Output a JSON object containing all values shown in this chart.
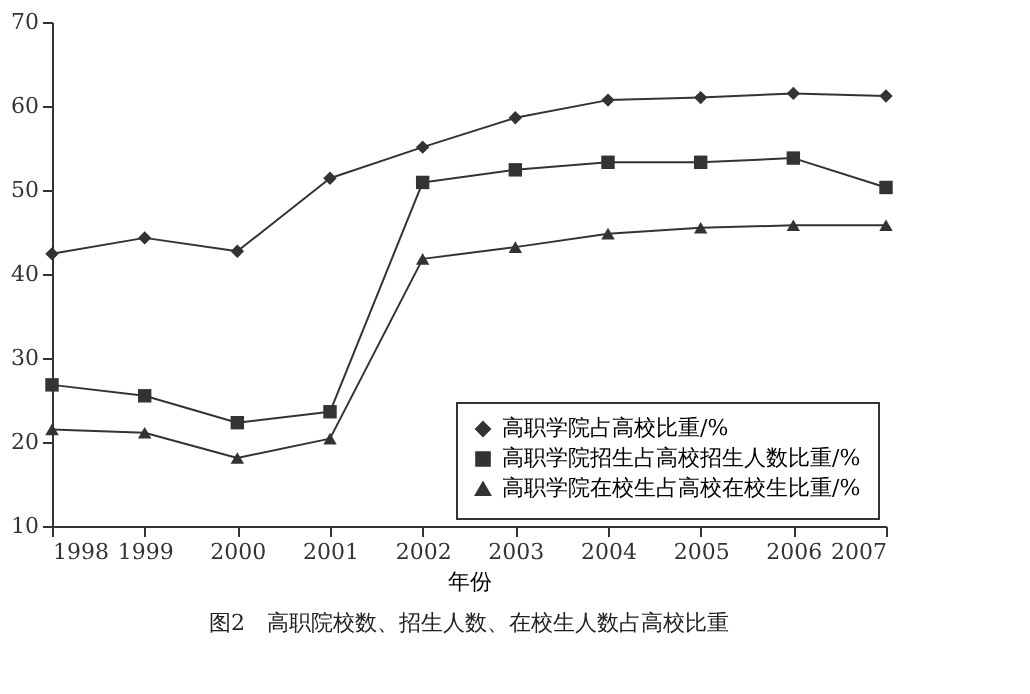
{
  "chart_data": {
    "type": "line",
    "title": "图2　高职院校数、招生人数、在校生人数占高校比重",
    "xlabel": "年份",
    "x": [
      1998,
      1999,
      2000,
      2001,
      2002,
      2003,
      2004,
      2005,
      2006,
      2007
    ],
    "xlim": [
      1998,
      2007
    ],
    "xticks": [
      1998,
      1999,
      2000,
      2001,
      2002,
      2003,
      2004,
      2005,
      2006,
      2007
    ],
    "ylim": [
      10,
      70
    ],
    "yticks": [
      10,
      20,
      30,
      40,
      50,
      60,
      70
    ],
    "grid": false,
    "legend": "bottom right",
    "line_style": "solid",
    "series": [
      {
        "name": "高职学院占高校比重/%",
        "color": "#333333",
        "marker": "diamond",
        "values": [
          42.4,
          44.3,
          42.7,
          51.4,
          55.1,
          58.6,
          60.7,
          61.0,
          61.5,
          61.2
        ]
      },
      {
        "name": "高职学院招生占高校招生人数比重/%",
        "color": "#333333",
        "marker": "square",
        "values": [
          26.8,
          25.5,
          22.3,
          23.6,
          50.9,
          52.4,
          53.3,
          53.3,
          53.8,
          50.3
        ]
      },
      {
        "name": "高职学院在校生占高校在校生比重/%",
        "color": "#333333",
        "marker": "triangle",
        "values": [
          21.5,
          21.1,
          18.1,
          20.4,
          41.8,
          43.2,
          44.8,
          45.5,
          45.8,
          45.8
        ]
      }
    ]
  }
}
